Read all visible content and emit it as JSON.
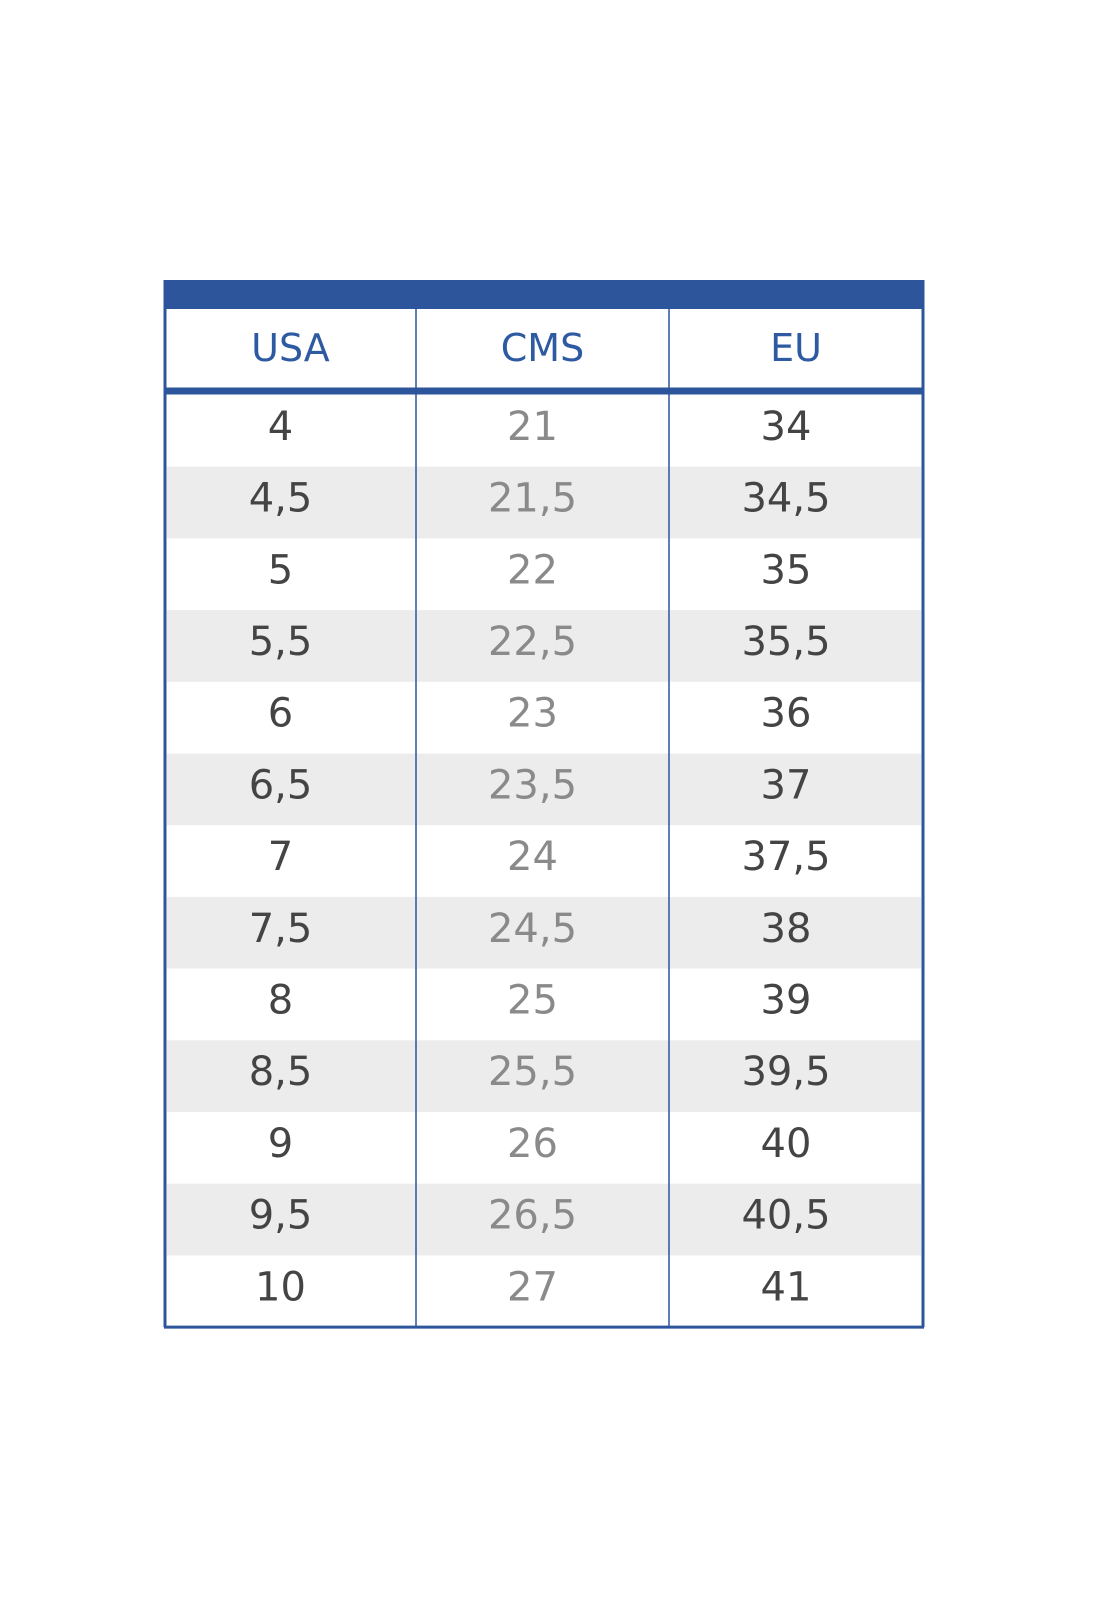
{
  "table": {
    "header": [
      "USA",
      "CMS",
      "EU"
    ],
    "rows": [
      [
        "4",
        "21",
        "34"
      ],
      [
        "4,5",
        "21,5",
        "34,5"
      ],
      [
        "5",
        "22",
        "35"
      ],
      [
        "5,5",
        "22,5",
        "35,5"
      ],
      [
        "6",
        "23",
        "36"
      ],
      [
        "6,5",
        "23,5",
        "37"
      ],
      [
        "7",
        "24",
        "37,5"
      ],
      [
        "7,5",
        "24,5",
        "38"
      ],
      [
        "8",
        "25",
        "39"
      ],
      [
        "8,5",
        "25,5",
        "39,5"
      ],
      [
        "9",
        "26",
        "40"
      ],
      [
        "9,5",
        "26,5",
        "40,5"
      ],
      [
        "10",
        "27",
        "41"
      ]
    ]
  }
}
